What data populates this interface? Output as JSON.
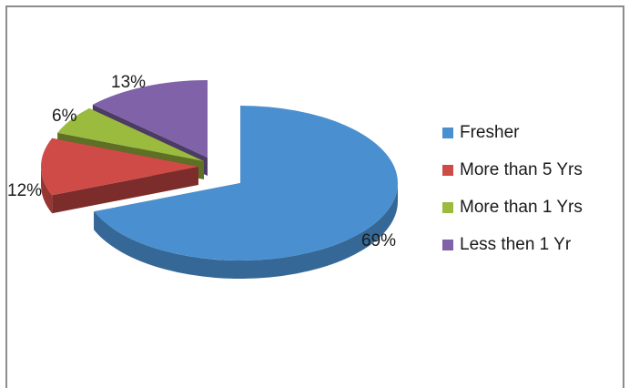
{
  "chart_data": {
    "type": "pie",
    "title": "",
    "categories": [
      "Fresher",
      "More than 5 Yrs",
      "More than 1 Yrs",
      "Less then 1 Yr"
    ],
    "values": [
      69,
      12,
      6,
      13
    ],
    "value_labels": [
      "69%",
      "12%",
      "6%",
      "13%"
    ],
    "colors": [
      "#4a90d0",
      "#cf4b47",
      "#9bbb3f",
      "#7f62a8"
    ],
    "style": "3d-exploded",
    "legend_position": "right"
  }
}
